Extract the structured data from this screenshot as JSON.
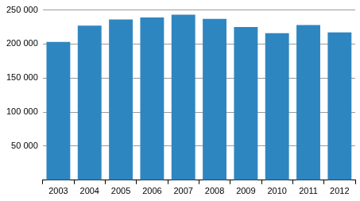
{
  "chart_data": {
    "type": "bar",
    "categories": [
      "2003",
      "2004",
      "2005",
      "2006",
      "2007",
      "2008",
      "2009",
      "2010",
      "2011",
      "2012"
    ],
    "values": [
      203000,
      227000,
      236000,
      239000,
      243000,
      237000,
      225000,
      216000,
      228000,
      217000
    ],
    "color": "#2e86c1",
    "ylim": [
      0,
      250000
    ],
    "yticks": [
      {
        "value": 50000,
        "label": "50 000"
      },
      {
        "value": 100000,
        "label": "100 000"
      },
      {
        "value": 150000,
        "label": "150 000"
      },
      {
        "value": 200000,
        "label": "200 000"
      },
      {
        "value": 250000,
        "label": "250 000"
      }
    ],
    "grid": true
  }
}
